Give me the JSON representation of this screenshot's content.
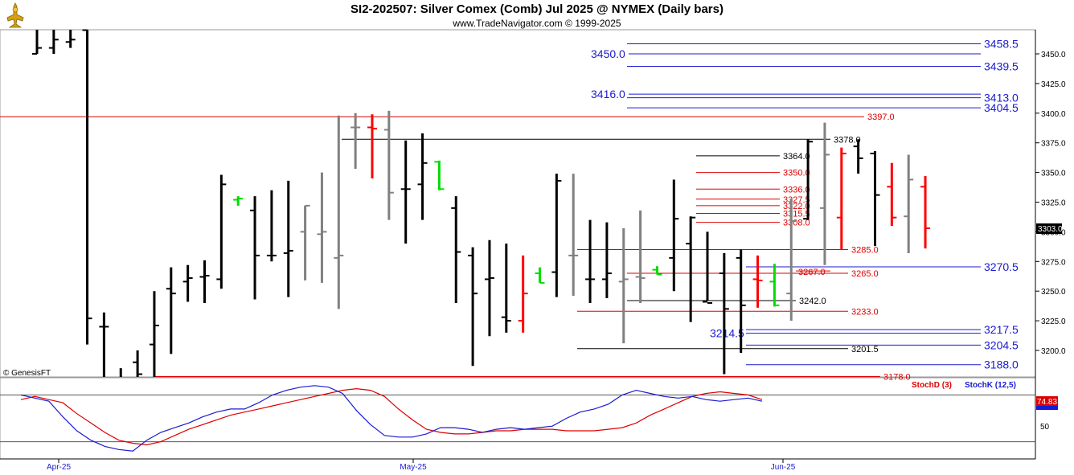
{
  "header": {
    "title": "SI2-202507:  Silver Comex (Comb) Jul 2025 @ NYMEX  (Daily bars)",
    "subtitle": "www.TradeNavigator.com © 1999-2025",
    "copyright": "© GenesisFT"
  },
  "colors": {
    "bar_up": "#000000",
    "bar_gray": "#808080",
    "bar_red": "#ff0000",
    "bar_green": "#00dd00",
    "level_blue": "#1a1ad0",
    "level_red": "#dd0000",
    "level_black": "#000000",
    "stochd": "#dd0000",
    "stochk": "#1a1ad0"
  },
  "chart_data": [
    {
      "type": "ohlc",
      "title": "SI2-202507:  Silver Comex (Comb) Jul 2025 @ NYMEX  (Daily bars)",
      "ylim": [
        3172,
        3485
      ],
      "y_ticks": [
        "3450.0",
        "3425.0",
        "3400.0",
        "3375.0",
        "3350.0",
        "3325.0",
        "3300.0",
        "3275.0",
        "3250.0",
        "3225.0",
        "3200.0"
      ],
      "x_labels": [
        "Apr-25",
        "May-25",
        "Jun-25"
      ],
      "last_price": "3303.0",
      "bars": [
        {
          "o": 3450,
          "h": 3480,
          "l": 3450,
          "c": 3455,
          "color": "black"
        },
        {
          "o": 3455,
          "h": 3480,
          "l": 3450,
          "c": 3462,
          "color": "black"
        },
        {
          "o": 3460,
          "h": 3490,
          "l": 3455,
          "c": 3462,
          "color": "black"
        },
        {
          "o": 3470,
          "h": 3480,
          "l": 3205,
          "c": 3227,
          "color": "black"
        },
        {
          "o": 3220,
          "h": 3232,
          "l": 3165,
          "c": 3220,
          "color": "black"
        },
        {
          "o": 3170,
          "h": 3185,
          "l": 3155,
          "c": 3175,
          "color": "black"
        },
        {
          "o": 3190,
          "h": 3200,
          "l": 3160,
          "c": 3180,
          "color": "black"
        },
        {
          "o": 3205,
          "h": 3250,
          "l": 3175,
          "c": 3221,
          "color": "black"
        },
        {
          "o": 3252,
          "h": 3270,
          "l": 3197,
          "c": 3248,
          "color": "black"
        },
        {
          "o": 3258,
          "h": 3272,
          "l": 3241,
          "c": 3261,
          "color": "black"
        },
        {
          "o": 3262,
          "h": 3276,
          "l": 3240,
          "c": 3263,
          "color": "black"
        },
        {
          "o": 3260,
          "h": 3348,
          "l": 3252,
          "c": 3340,
          "color": "black"
        },
        {
          "o": 3327,
          "h": 3330,
          "l": 3322,
          "c": 3328,
          "color": "green"
        },
        {
          "o": 3318,
          "h": 3330,
          "l": 3243,
          "c": 3280,
          "color": "black"
        },
        {
          "o": 3280,
          "h": 3335,
          "l": 3275,
          "c": 3280,
          "color": "black"
        },
        {
          "o": 3282,
          "h": 3343,
          "l": 3245,
          "c": 3284,
          "color": "black"
        },
        {
          "o": 3300,
          "h": 3322,
          "l": 3259,
          "c": 3322,
          "color": "gray"
        },
        {
          "o": 3298,
          "h": 3350,
          "l": 3257,
          "c": 3300,
          "color": "gray"
        },
        {
          "o": 3278,
          "h": 3398,
          "l": 3235,
          "c": 3280,
          "color": "gray"
        },
        {
          "o": 3388,
          "h": 3400,
          "l": 3353,
          "c": 3388,
          "color": "gray"
        },
        {
          "o": 3388,
          "h": 3399,
          "l": 3345,
          "c": 3387,
          "color": "red"
        },
        {
          "o": 3386,
          "h": 3402,
          "l": 3310,
          "c": 3333,
          "color": "gray"
        },
        {
          "o": 3336,
          "h": 3377,
          "l": 3290,
          "c": 3336,
          "color": "black"
        },
        {
          "o": 3340,
          "h": 3383,
          "l": 3310,
          "c": 3358,
          "color": "black"
        },
        {
          "o": 3359,
          "h": 3360,
          "l": 3335,
          "c": 3336,
          "color": "green"
        },
        {
          "o": 3320,
          "h": 3330,
          "l": 3240,
          "c": 3283,
          "color": "black"
        },
        {
          "o": 3280,
          "h": 3287,
          "l": 3187,
          "c": 3248,
          "color": "black"
        },
        {
          "o": 3260,
          "h": 3293,
          "l": 3212,
          "c": 3261,
          "color": "black"
        },
        {
          "o": 3228,
          "h": 3290,
          "l": 3215,
          "c": 3225,
          "color": "black"
        },
        {
          "o": 3225,
          "h": 3280,
          "l": 3215,
          "c": 3248,
          "color": "red"
        },
        {
          "o": 3265,
          "h": 3270,
          "l": 3257,
          "c": 3257,
          "color": "green"
        },
        {
          "o": 3266,
          "h": 3349,
          "l": 3245,
          "c": 3343,
          "color": "black"
        },
        {
          "o": 3280,
          "h": 3349,
          "l": 3246,
          "c": 3280,
          "color": "gray"
        },
        {
          "o": 3260,
          "h": 3310,
          "l": 3240,
          "c": 3260,
          "color": "black"
        },
        {
          "o": 3260,
          "h": 3308,
          "l": 3244,
          "c": 3265,
          "color": "black"
        },
        {
          "o": 3258,
          "h": 3303,
          "l": 3206,
          "c": 3260,
          "color": "gray"
        },
        {
          "o": 3262,
          "h": 3318,
          "l": 3240,
          "c": 3261,
          "color": "gray"
        },
        {
          "o": 3268,
          "h": 3271,
          "l": 3264,
          "c": 3264,
          "color": "green"
        },
        {
          "o": 3278,
          "h": 3344,
          "l": 3250,
          "c": 3311,
          "color": "black"
        },
        {
          "o": 3290,
          "h": 3313,
          "l": 3224,
          "c": 3312,
          "color": "black"
        },
        {
          "o": 3241,
          "h": 3300,
          "l": 3242,
          "c": 3240,
          "color": "black"
        },
        {
          "o": 3265,
          "h": 3282,
          "l": 3180,
          "c": 3235,
          "color": "black"
        },
        {
          "o": 3278,
          "h": 3285,
          "l": 3198,
          "c": 3238,
          "color": "black"
        },
        {
          "o": 3260,
          "h": 3280,
          "l": 3236,
          "c": 3259,
          "color": "red"
        },
        {
          "o": 3258,
          "h": 3273,
          "l": 3237,
          "c": 3238,
          "color": "green"
        },
        {
          "o": 3248,
          "h": 3328,
          "l": 3225,
          "c": 3309,
          "color": "gray"
        },
        {
          "o": 3311,
          "h": 3378,
          "l": 3310,
          "c": 3376,
          "color": "black"
        },
        {
          "o": 3320,
          "h": 3392,
          "l": 3272,
          "c": 3365,
          "color": "gray"
        },
        {
          "o": 3312,
          "h": 3371,
          "l": 3285,
          "c": 3366,
          "color": "red"
        },
        {
          "o": 3372,
          "h": 3378,
          "l": 3349,
          "c": 3362,
          "color": "black"
        },
        {
          "o": 3366,
          "h": 3368,
          "l": 3288,
          "c": 3331,
          "color": "black"
        },
        {
          "o": 3338,
          "h": 3358,
          "l": 3305,
          "c": 3312,
          "color": "red"
        },
        {
          "o": 3313,
          "h": 3365,
          "l": 3282,
          "c": 3344,
          "color": "gray"
        },
        {
          "o": 3338,
          "h": 3347,
          "l": 3286,
          "c": 3303,
          "color": "red"
        }
      ]
    },
    {
      "type": "line",
      "title": "Stochastic",
      "ylim": [
        0,
        100
      ],
      "y_ticks": [
        "50"
      ],
      "series": [
        {
          "name": "StochD (3)",
          "values": [
            74,
            78,
            74,
            70,
            56,
            44,
            32,
            22,
            18,
            16,
            20,
            28,
            36,
            42,
            48,
            54,
            58,
            62,
            66,
            70,
            74,
            78,
            82,
            86,
            88,
            86,
            78,
            62,
            48,
            36,
            32,
            30,
            30,
            32,
            34,
            34,
            36,
            36,
            36,
            34,
            34,
            34,
            36,
            38,
            44,
            54,
            62,
            70,
            78,
            82,
            84,
            82,
            80,
            74
          ]
        },
        {
          "name": "StochK (12,5)",
          "values": [
            80,
            76,
            72,
            52,
            34,
            22,
            14,
            10,
            8,
            22,
            32,
            38,
            44,
            52,
            58,
            62,
            62,
            70,
            80,
            86,
            90,
            92,
            90,
            82,
            60,
            42,
            28,
            26,
            26,
            30,
            38,
            38,
            36,
            32,
            36,
            38,
            36,
            38,
            40,
            50,
            58,
            62,
            68,
            80,
            86,
            82,
            78,
            76,
            78,
            74,
            72,
            74,
            76,
            72
          ]
        }
      ],
      "last_value": "74.83"
    }
  ],
  "levels": [
    {
      "value": "3458.5",
      "color": "blue",
      "label_side": "right"
    },
    {
      "value": "3450.0",
      "color": "blue",
      "label_side": "left"
    },
    {
      "value": "3439.5",
      "color": "blue",
      "label_side": "right"
    },
    {
      "value": "3416.0",
      "color": "blue",
      "label_side": "left"
    },
    {
      "value": "3413.0",
      "color": "blue",
      "label_side": "right"
    },
    {
      "value": "3404.5",
      "color": "blue",
      "label_side": "right"
    },
    {
      "value": "3397.0",
      "color": "red",
      "label_side": "right"
    },
    {
      "value": "3378.0",
      "color": "black",
      "label_side": "right"
    },
    {
      "value": "3364.0",
      "color": "black",
      "label_side": "right"
    },
    {
      "value": "3350.0",
      "color": "red",
      "label_side": "right"
    },
    {
      "value": "3336.0",
      "color": "red",
      "label_side": "right"
    },
    {
      "value": "3327.5",
      "color": "red",
      "label_side": "right"
    },
    {
      "value": "3322.0",
      "color": "red",
      "label_side": "right"
    },
    {
      "value": "3315.5",
      "color": "red",
      "label_side": "right"
    },
    {
      "value": "3308.0",
      "color": "red",
      "label_side": "right"
    },
    {
      "value": "3285.0",
      "color": "red",
      "label_side": "right"
    },
    {
      "value": "3270.5",
      "color": "blue",
      "label_side": "right"
    },
    {
      "value": "3267.0",
      "color": "red",
      "label_side": "left"
    },
    {
      "value": "3265.0",
      "color": "red",
      "label_side": "right"
    },
    {
      "value": "3242.0",
      "color": "black",
      "label_side": "right"
    },
    {
      "value": "3233.0",
      "color": "red",
      "label_side": "right"
    },
    {
      "value": "3214.5",
      "color": "blue",
      "label_side": "left"
    },
    {
      "value": "3217.5",
      "color": "blue",
      "label_side": "right"
    },
    {
      "value": "3204.5",
      "color": "blue",
      "label_side": "right"
    },
    {
      "value": "3201.5",
      "color": "black",
      "label_side": "right"
    },
    {
      "value": "3188.0",
      "color": "blue",
      "label_side": "right"
    },
    {
      "value": "3178.0",
      "color": "red",
      "label_side": "right"
    }
  ],
  "legend": {
    "stochd": "StochD (3)",
    "stochk": "StochK (12,5)"
  }
}
